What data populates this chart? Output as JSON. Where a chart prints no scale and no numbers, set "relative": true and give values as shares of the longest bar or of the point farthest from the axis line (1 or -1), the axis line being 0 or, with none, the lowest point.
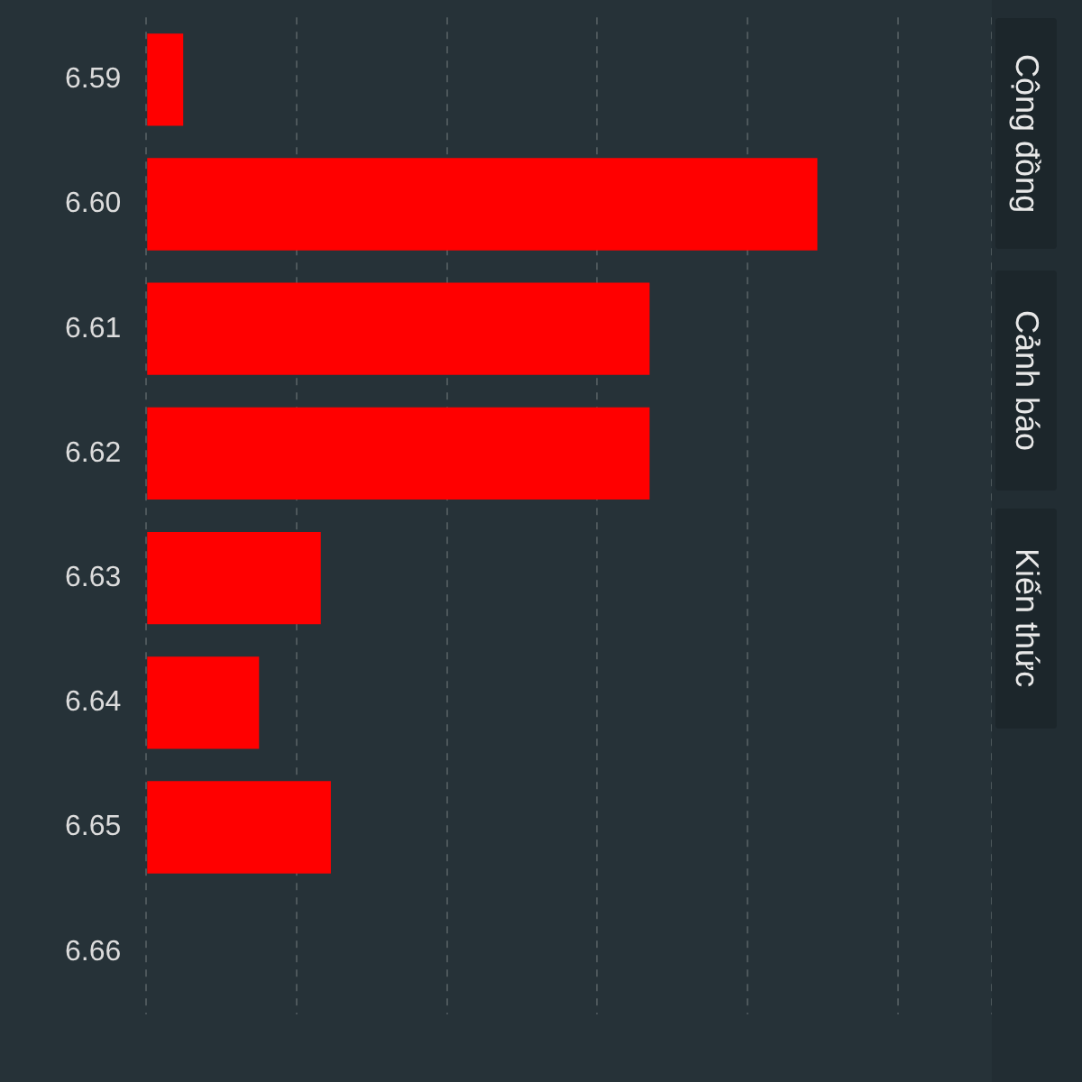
{
  "chart_data": {
    "type": "bar",
    "orientation": "horizontal",
    "relative": true,
    "categories": [
      "6.59",
      "6.60",
      "6.61",
      "6.62",
      "6.63",
      "6.64",
      "6.65",
      "6.66"
    ],
    "values": [
      0.055,
      1,
      0.75,
      0.75,
      0.26,
      0.168,
      0.275,
      0
    ],
    "color": "#ff0000",
    "grid": "x",
    "legend": false,
    "annotations": [
      "Cộng đồng",
      "Cảnh báo",
      "Kiến thức"
    ]
  }
}
